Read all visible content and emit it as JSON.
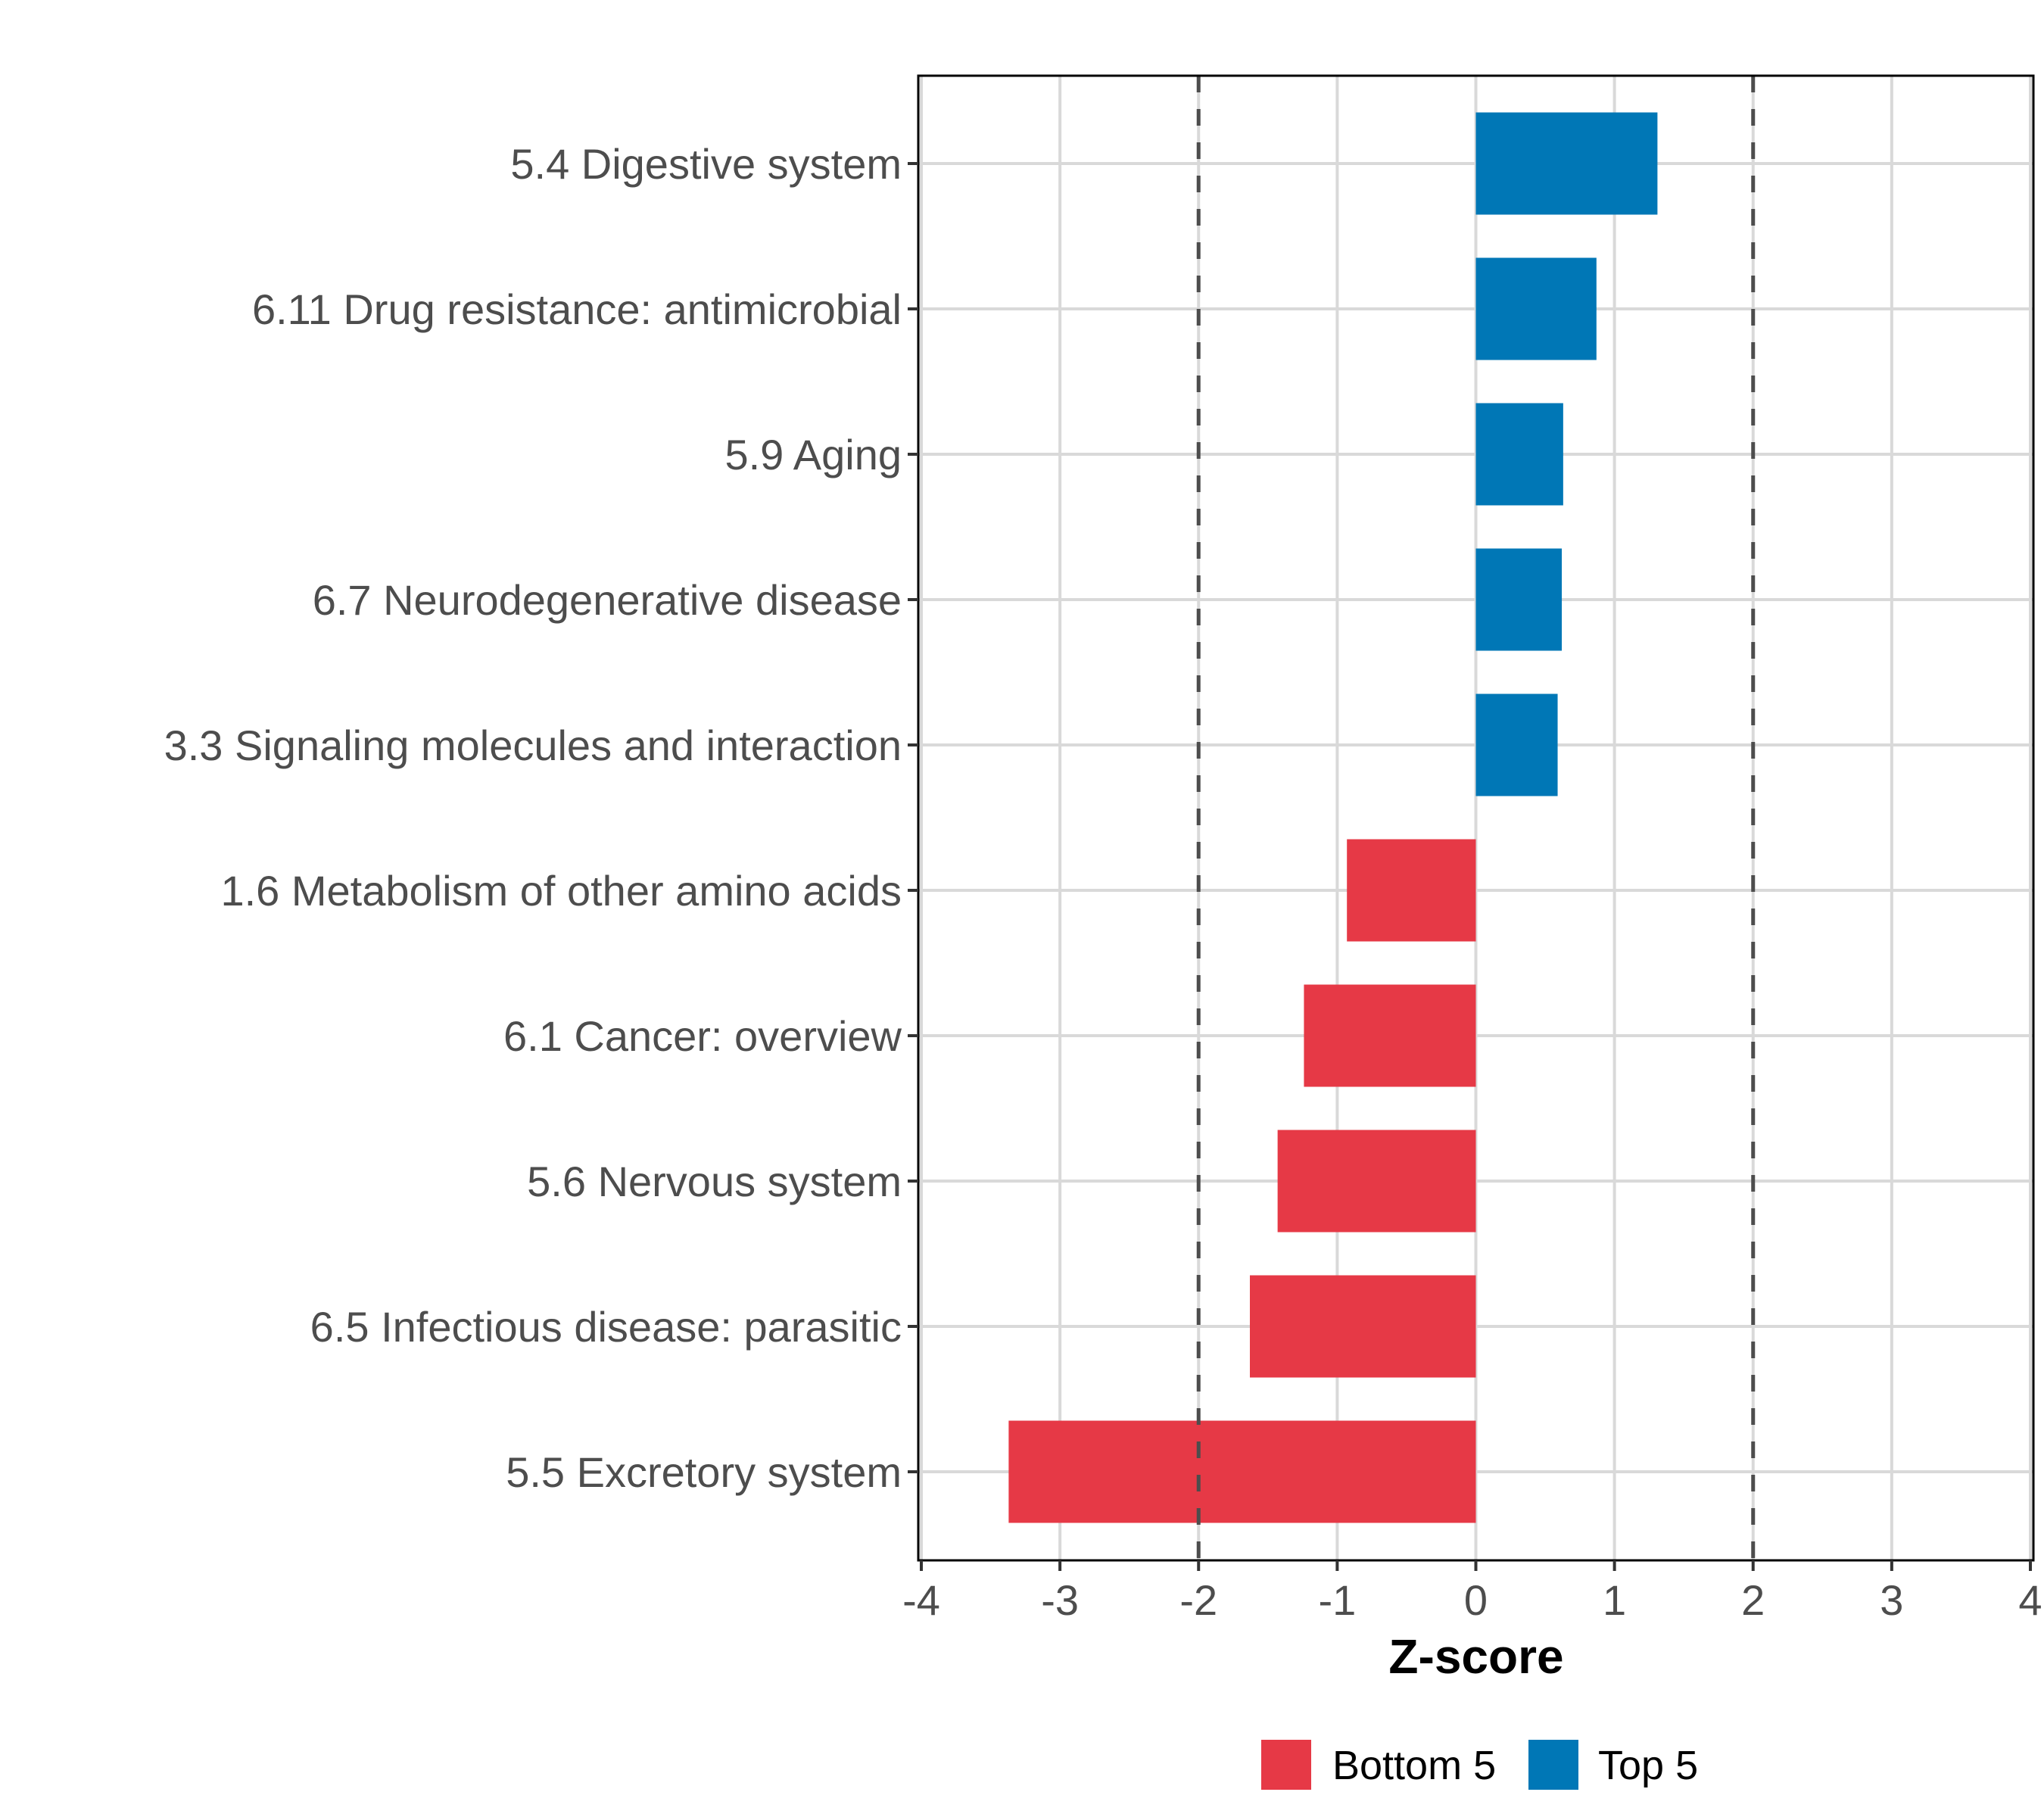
{
  "chart_data": {
    "type": "bar",
    "orientation": "horizontal",
    "title": "",
    "xlabel": "Z-score",
    "ylabel": "",
    "xlim": [
      -4,
      4
    ],
    "xticks": [
      -4,
      -3,
      -2,
      -1,
      0,
      1,
      2,
      3,
      4
    ],
    "xtick_labels": [
      "-4",
      "-3",
      "-2",
      "-1",
      "0",
      "1",
      "2",
      "3",
      "4"
    ],
    "reference_lines": [
      -2,
      2
    ],
    "grid": true,
    "categories": [
      "5.4 Digestive system",
      "6.11 Drug resistance: antimicrobial",
      "5.9 Aging",
      "6.7 Neurodegenerative disease",
      "3.3 Signaling molecules and interaction",
      "1.6 Metabolism of other amino acids",
      "6.1 Cancer: overview",
      "5.6 Nervous system",
      "6.5 Infectious disease: parasitic",
      "5.5 Excretory system"
    ],
    "values": [
      1.31,
      0.87,
      0.63,
      0.62,
      0.59,
      -0.93,
      -1.24,
      -1.43,
      -1.63,
      -3.37
    ],
    "groups": [
      "Top 5",
      "Top 5",
      "Top 5",
      "Top 5",
      "Top 5",
      "Bottom 5",
      "Bottom 5",
      "Bottom 5",
      "Bottom 5",
      "Bottom 5"
    ],
    "legend": {
      "position": "bottom",
      "entries": [
        {
          "label": "Bottom 5",
          "color": "#E63946"
        },
        {
          "label": "Top 5",
          "color": "#0077B6"
        }
      ]
    },
    "colors": {
      "Bottom 5": "#E63946",
      "Top 5": "#0077B6",
      "reference_line": "#4d4d4d",
      "grid": "#d9d9d9"
    }
  }
}
